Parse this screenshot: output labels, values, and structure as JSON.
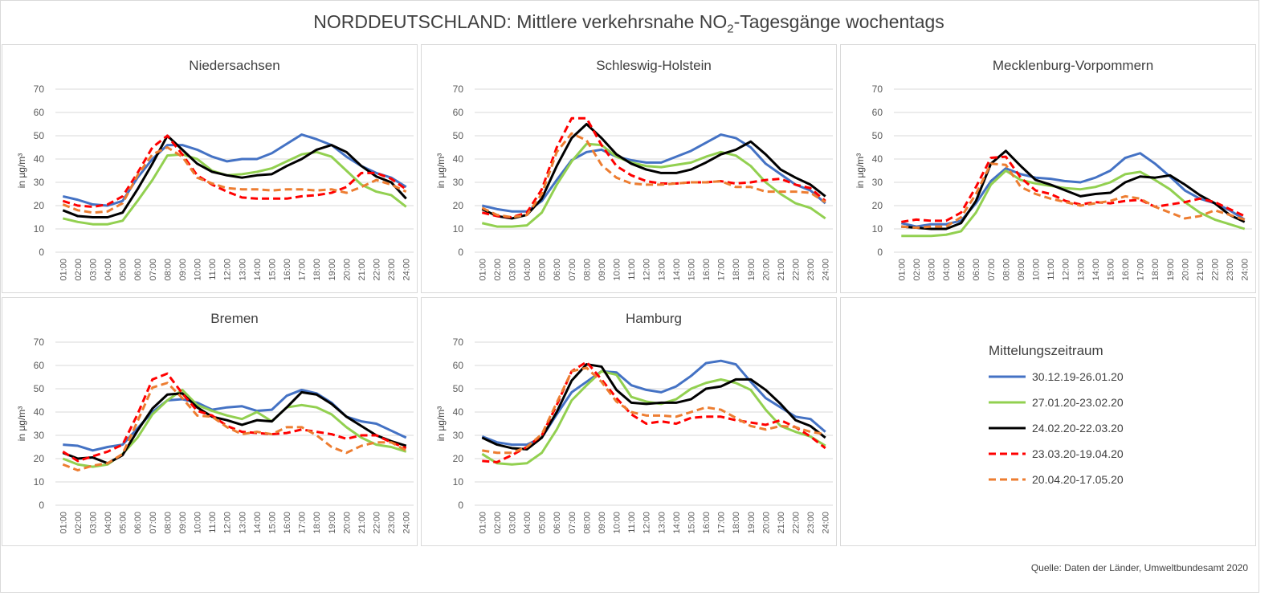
{
  "title": {
    "main": "NORDDEUTSCHLAND: Mittlere verkehrsnahe NO",
    "sub": "2",
    "suffix": "-Tagesgänge wochentags"
  },
  "source": "Quelle: Daten der Länder, Umweltbundesamt 2020",
  "legend": {
    "title": "Mittelungszeitraum"
  },
  "chart_data": {
    "type": "line",
    "ylabel": "in µg/m³",
    "ylim": [
      0,
      70
    ],
    "yticks": [
      0,
      10,
      20,
      30,
      40,
      50,
      60,
      70
    ],
    "grid": "horizontal",
    "legend_placement": "right",
    "categories": [
      "01:00",
      "02:00",
      "03:00",
      "04:00",
      "05:00",
      "06:00",
      "07:00",
      "08:00",
      "09:00",
      "10:00",
      "11:00",
      "12:00",
      "13:00",
      "14:00",
      "15:00",
      "16:00",
      "17:00",
      "18:00",
      "19:00",
      "20:00",
      "21:00",
      "22:00",
      "23:00",
      "24:00"
    ],
    "series_styles": [
      {
        "name": "30.12.19-26.01.20",
        "color": "#4472c4",
        "dash": "solid"
      },
      {
        "name": "27.01.20-23.02.20",
        "color": "#92d050",
        "dash": "solid"
      },
      {
        "name": "24.02.20-22.03.20",
        "color": "#000000",
        "dash": "solid"
      },
      {
        "name": "23.03.20-19.04.20",
        "color": "#ff0000",
        "dash": "dashed"
      },
      {
        "name": "20.04.20-17.05.20",
        "color": "#ed7d31",
        "dash": "dashed"
      }
    ],
    "panels": [
      {
        "title": "Niedersachsen",
        "series": [
          [
            24,
            22.5,
            20.5,
            20,
            22,
            32,
            40,
            46,
            46,
            44,
            41,
            39,
            40,
            40,
            42.5,
            46.5,
            50.5,
            48.5,
            46,
            41,
            37,
            34,
            32,
            28
          ],
          [
            14.5,
            13,
            12,
            12,
            13.5,
            22,
            31,
            41.5,
            42,
            40,
            35,
            33,
            33.5,
            34.5,
            36,
            39,
            42,
            43,
            41,
            35,
            29,
            26,
            24.5,
            19.5
          ],
          [
            18,
            15.5,
            15,
            15,
            17,
            27,
            38,
            50,
            44,
            38,
            34.5,
            33,
            32,
            33,
            33.5,
            37,
            40,
            44,
            46,
            43,
            37,
            32.5,
            30,
            23
          ],
          [
            22,
            20,
            19.5,
            20.5,
            24,
            34,
            45,
            50,
            42,
            33,
            29,
            26,
            23.5,
            23,
            23,
            23,
            24,
            24.5,
            25.5,
            28,
            34,
            34,
            31.5,
            27
          ],
          [
            20.5,
            18,
            17,
            17.5,
            21,
            33,
            42,
            45,
            41,
            32,
            29.5,
            27.5,
            27,
            27,
            26.5,
            27,
            27,
            26.5,
            27,
            25.5,
            28,
            31,
            29,
            26
          ]
        ]
      },
      {
        "title": "Schleswig-Holstein",
        "series": [
          [
            20,
            18.5,
            17.5,
            17.5,
            22,
            31,
            39.5,
            43,
            44,
            41,
            39.5,
            38.5,
            38.5,
            41,
            43.5,
            47,
            50.5,
            49,
            45,
            38,
            33.5,
            29,
            26.5,
            21
          ],
          [
            12.5,
            11,
            11,
            11.5,
            17,
            29,
            39,
            46.5,
            46,
            41,
            38.5,
            37,
            36.5,
            37.5,
            38.5,
            41,
            43,
            41.5,
            37,
            30,
            25,
            21,
            19,
            14.5
          ],
          [
            18.5,
            15.5,
            14.5,
            16,
            23,
            37,
            49,
            55,
            49,
            42,
            38,
            35.5,
            34,
            34,
            35.5,
            38.5,
            42,
            44,
            47.5,
            42,
            35.5,
            32,
            29,
            24
          ],
          [
            17,
            15.5,
            15,
            17,
            27,
            45,
            57.5,
            57.5,
            46,
            37,
            33,
            30.5,
            29.5,
            29.5,
            30,
            30,
            30.5,
            29.5,
            30,
            31,
            31.5,
            29,
            27.5,
            22
          ],
          [
            19,
            16,
            15,
            16,
            25,
            43,
            51,
            48,
            37.5,
            32,
            29.5,
            29,
            29,
            29.5,
            30,
            30,
            30.5,
            28,
            28,
            26,
            26,
            26,
            25.5,
            21.5
          ]
        ]
      },
      {
        "title": "Mecklenburg-Vorpommern",
        "series": [
          [
            12.5,
            11,
            12,
            12,
            13.5,
            21,
            30.5,
            36,
            33.5,
            32,
            31.5,
            30.5,
            30,
            32,
            35,
            40.5,
            42.5,
            38,
            32.5,
            26.5,
            23,
            21,
            18,
            14
          ],
          [
            7,
            7,
            7,
            7.5,
            9,
            17,
            29,
            35,
            31,
            29.5,
            28.5,
            27.5,
            27,
            28,
            30,
            33.5,
            34.5,
            31,
            27,
            21.5,
            17,
            14,
            12,
            10
          ],
          [
            11,
            10.5,
            10,
            10,
            12.5,
            22,
            38,
            43.5,
            37,
            31,
            29,
            26.5,
            24,
            25,
            25.5,
            30,
            32.5,
            32,
            33,
            29,
            24.5,
            21,
            16,
            13
          ],
          [
            13,
            14,
            13.5,
            13.5,
            17,
            28,
            40.5,
            41,
            32,
            26.5,
            25,
            22,
            20.5,
            21.5,
            21,
            22,
            22.5,
            19.5,
            20.5,
            21.5,
            23,
            21.5,
            18.5,
            15.5
          ],
          [
            11,
            10.5,
            11,
            11,
            15,
            25,
            38,
            37.5,
            28,
            25,
            23,
            21.5,
            20,
            21,
            22,
            24,
            23,
            19.5,
            17,
            14.5,
            15.5,
            18,
            16,
            14
          ]
        ]
      },
      {
        "title": "Bremen",
        "series": [
          [
            26,
            25.5,
            23.5,
            25,
            26,
            33,
            40,
            45,
            45.5,
            44,
            41,
            42,
            42.5,
            40.5,
            41,
            47,
            49.5,
            48,
            44,
            38,
            36,
            35,
            32,
            29
          ],
          [
            20,
            17.5,
            16.5,
            17.5,
            22,
            29,
            39,
            45,
            49.5,
            43,
            40.5,
            38.5,
            37,
            40,
            36,
            42,
            43,
            42,
            39,
            33.5,
            29,
            26,
            25,
            23
          ],
          [
            22.5,
            20,
            20.5,
            18,
            21.5,
            32,
            41.5,
            47.5,
            48,
            42,
            38,
            36.5,
            34.5,
            36.5,
            36,
            42,
            48.5,
            47.5,
            43.5,
            38,
            34,
            30,
            27.5,
            25.5
          ],
          [
            23,
            19,
            21,
            23,
            26,
            39,
            54,
            56.5,
            48,
            40.5,
            38.5,
            34,
            31.5,
            31,
            30.5,
            31,
            32.5,
            31.5,
            30.5,
            28.5,
            30,
            30,
            27,
            24.5
          ],
          [
            17.5,
            15,
            17,
            18,
            22,
            36,
            50.5,
            52.5,
            46,
            38.5,
            38,
            33.5,
            30.5,
            31.5,
            30.5,
            33.5,
            33.5,
            30,
            25,
            22.5,
            25.5,
            27,
            27,
            23.5
          ]
        ]
      },
      {
        "title": "Hamburg",
        "series": [
          [
            29.5,
            27,
            26,
            26,
            29,
            39,
            48.5,
            53,
            57.5,
            57,
            51.5,
            49.5,
            48.5,
            51,
            55.5,
            61,
            62,
            60.5,
            53,
            46,
            42,
            38,
            37,
            31.5
          ],
          [
            22,
            18,
            17.5,
            18,
            22.5,
            32.5,
            45,
            51.5,
            57.5,
            56,
            46.5,
            44.5,
            43.5,
            45.5,
            50,
            52.5,
            54,
            52.5,
            49.5,
            41,
            34,
            31.5,
            29.5,
            25.5
          ],
          [
            29,
            26,
            24.5,
            24,
            29,
            40,
            53.5,
            60.5,
            59.5,
            49.5,
            44,
            43.5,
            44,
            44,
            45.5,
            50,
            51,
            54,
            54,
            49.5,
            43.5,
            36.5,
            34,
            29
          ],
          [
            19,
            18.5,
            21.5,
            25,
            30,
            43,
            57.5,
            61.5,
            54,
            46,
            39,
            35,
            36,
            35,
            37.5,
            38,
            38,
            36.5,
            35.5,
            34.5,
            36.5,
            33.5,
            29.5,
            24.5
          ],
          [
            23.5,
            22.5,
            22.5,
            25,
            30.5,
            44,
            57.5,
            59,
            53,
            44.5,
            40,
            38.5,
            38.5,
            38,
            40,
            42,
            41,
            37.5,
            34,
            32.5,
            34,
            33.5,
            31.5,
            30.5
          ]
        ]
      }
    ]
  }
}
